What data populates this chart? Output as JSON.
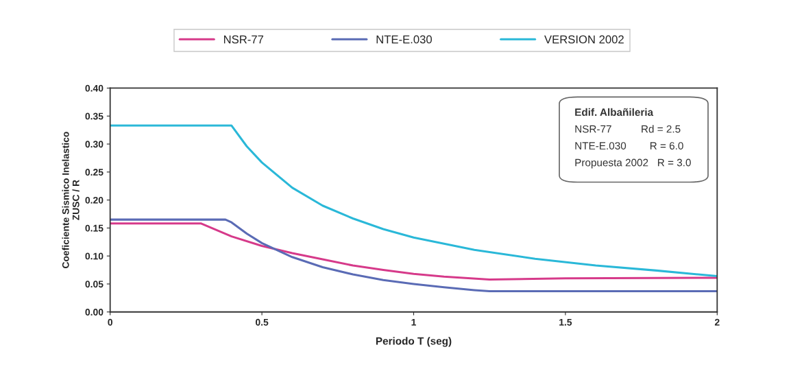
{
  "chart_data": {
    "type": "line",
    "xlabel": "Periodo T (seg)",
    "ylabel": "Coeficiente Sismico Inelastico\nZUSC / R",
    "xlim": [
      0,
      2
    ],
    "xticks": [
      0,
      0.5,
      1,
      1.5,
      2
    ],
    "ylim": [
      0,
      0.4
    ],
    "yticks": [
      {
        "value": 0,
        "label": "0.00"
      },
      {
        "value": 0.05,
        "label": "0.05"
      },
      {
        "value": 0.1,
        "label": "0.10"
      },
      {
        "value": 0.15,
        "label": "0.15"
      },
      {
        "value": 0.2,
        "label": "0.20"
      },
      {
        "value": 0.25,
        "label": "0.25"
      },
      {
        "value": 0.3,
        "label": "0.30"
      },
      {
        "value": 0.35,
        "label": "0.35"
      },
      {
        "value": 0.4,
        "label": "0.40"
      }
    ],
    "legend": "top",
    "grid": false,
    "marker": "none",
    "line_style": "solid",
    "annotations": [
      "Edif. Albañileria",
      "NSR-77          Rd = 2.5",
      "NTE-E.030        R = 6.0",
      "Propuesta 2002   R = 3.0"
    ],
    "series": [
      {
        "name": "NSR-77",
        "color": "#d63a8a",
        "x": [
          0,
          0.3,
          0.4,
          0.5,
          0.6,
          0.7,
          0.8,
          0.9,
          1.0,
          1.1,
          1.25,
          1.5,
          2.0
        ],
        "values": [
          0.158,
          0.158,
          0.135,
          0.118,
          0.105,
          0.094,
          0.083,
          0.075,
          0.068,
          0.063,
          0.058,
          0.06,
          0.061
        ]
      },
      {
        "name": "NTE-E.030",
        "color": "#5a6bb5",
        "x": [
          0,
          0.3,
          0.38,
          0.4,
          0.45,
          0.5,
          0.6,
          0.7,
          0.8,
          0.9,
          1.0,
          1.1,
          1.2,
          1.25,
          2.0
        ],
        "values": [
          0.165,
          0.165,
          0.165,
          0.16,
          0.14,
          0.123,
          0.098,
          0.08,
          0.067,
          0.057,
          0.05,
          0.044,
          0.039,
          0.037,
          0.037
        ]
      },
      {
        "name": "VERSION 2002",
        "color": "#2ab8d8",
        "x": [
          0,
          0.4,
          0.45,
          0.5,
          0.6,
          0.7,
          0.8,
          0.9,
          1.0,
          1.2,
          1.4,
          1.6,
          1.8,
          2.0
        ],
        "values": [
          0.333,
          0.333,
          0.296,
          0.267,
          0.222,
          0.19,
          0.167,
          0.148,
          0.133,
          0.111,
          0.095,
          0.083,
          0.074,
          0.064
        ]
      }
    ]
  }
}
